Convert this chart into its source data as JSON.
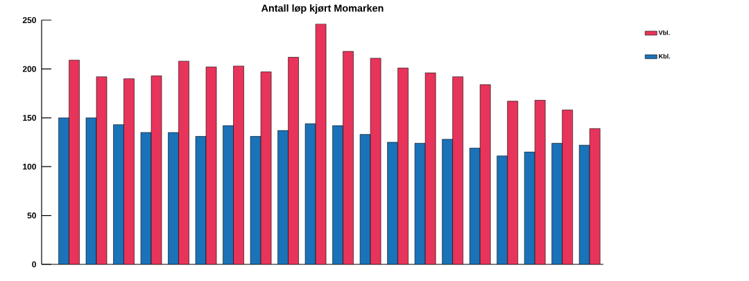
{
  "chart_data": {
    "type": "bar",
    "title": "Antall løp kjørt Momarken",
    "categories": [
      null,
      null,
      null,
      null,
      null,
      null,
      null,
      null,
      null,
      null,
      null,
      null,
      null,
      null,
      null,
      null,
      null,
      null,
      null,
      null
    ],
    "series": [
      {
        "name": "Kbl.",
        "color": "#1a72b8",
        "values": [
          150,
          150,
          143,
          135,
          135,
          131,
          142,
          131,
          137,
          144,
          142,
          133,
          125,
          124,
          128,
          119,
          111,
          115,
          124,
          122
        ]
      },
      {
        "name": "Vbl.",
        "color": "#e8345a",
        "values": [
          209,
          192,
          190,
          193,
          208,
          202,
          203,
          197,
          212,
          246,
          218,
          211,
          201,
          196,
          192,
          184,
          167,
          168,
          158,
          139
        ]
      }
    ],
    "ylim": [
      0,
      250
    ],
    "yticks": [
      0,
      50,
      100,
      150,
      200,
      250
    ],
    "grid": false,
    "legend": "top right",
    "tick_labels": "y"
  }
}
